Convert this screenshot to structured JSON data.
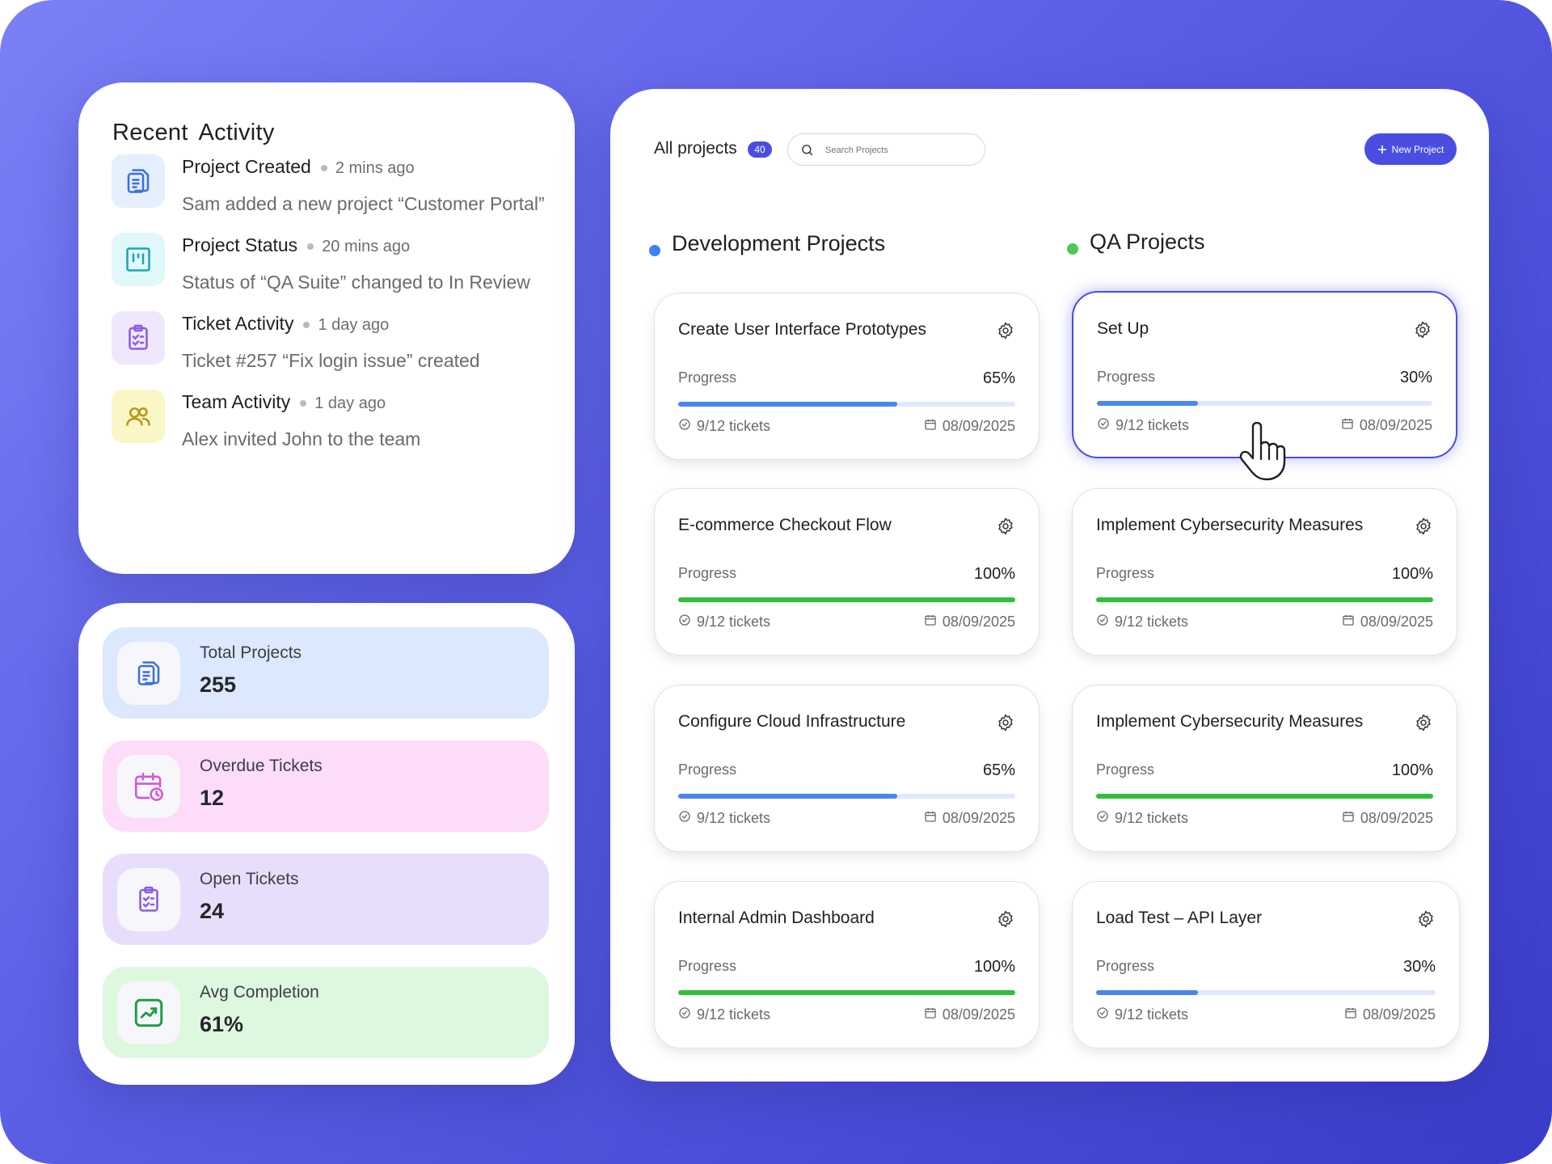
{
  "activity": {
    "title": "Recent  Activity",
    "items": [
      {
        "title": "Project Created",
        "time": "2 mins ago",
        "desc": "Sam added a new project “Customer Portal”",
        "icon": "document-stack-icon",
        "color": "#3b6fe0",
        "bg": "#e6effd"
      },
      {
        "title": "Project Status",
        "time": "20 mins ago",
        "desc": "Status of “QA Suite” changed to In Review",
        "icon": "kanban-board-icon",
        "color": "#1fa4b4",
        "bg": "#e1f8fa"
      },
      {
        "title": "Ticket Activity",
        "time": "1 day ago",
        "desc": "Ticket #257 “Fix login issue” created",
        "icon": "clipboard-check-icon",
        "color": "#8a5be6",
        "bg": "#efe7fc"
      },
      {
        "title": "Team Activity",
        "time": "1 day ago",
        "desc": "Alex invited John to the team",
        "icon": "users-icon",
        "color": "#b29a1c",
        "bg": "#fbf6c5"
      }
    ]
  },
  "stats": [
    {
      "label": "Total Projects",
      "value": "255",
      "icon": "document-stack-icon",
      "bg": "#dbe8fd",
      "color": "#3b6fe0"
    },
    {
      "label": "Overdue Tickets",
      "value": "12",
      "icon": "calendar-clock-icon",
      "bg": "#fcdcf8",
      "color": "#d05ad6"
    },
    {
      "label": "Open Tickets",
      "value": "24",
      "icon": "clipboard-check-icon",
      "bg": "#e8defc",
      "color": "#8a5be6"
    },
    {
      "label": "Avg Completion",
      "value": "61%",
      "icon": "trend-up-icon",
      "bg": "#def8e0",
      "color": "#1f9d45"
    }
  ],
  "projects": {
    "title": "All projects",
    "count": "40",
    "search_placeholder": "Search Projects",
    "new_button": "New Project",
    "progress_label": "Progress",
    "columns": [
      {
        "title": "Development Projects",
        "dot_color": "#3b82f6",
        "cards": [
          {
            "title": "Create User Interface Prototypes",
            "progress": 65,
            "progress_label": "65%",
            "tickets": "9/12 tickets",
            "date": "08/09/2025"
          },
          {
            "title": "E-commerce Checkout Flow",
            "progress": 100,
            "progress_label": "100%",
            "tickets": "9/12 tickets",
            "date": "08/09/2025"
          },
          {
            "title": "Configure Cloud Infrastructure",
            "progress": 65,
            "progress_label": "65%",
            "tickets": "9/12 tickets",
            "date": "08/09/2025"
          },
          {
            "title": "Internal Admin Dashboard",
            "progress": 100,
            "progress_label": "100%",
            "tickets": "9/12 tickets",
            "date": "08/09/2025"
          }
        ]
      },
      {
        "title": "QA Projects",
        "dot_color": "#4cc75a",
        "cards": [
          {
            "title": "Set Up",
            "progress": 30,
            "progress_label": "30%",
            "tickets": "9/12 tickets",
            "date": "08/09/2025",
            "selected": true
          },
          {
            "title": "Implement Cybersecurity Measures",
            "progress": 100,
            "progress_label": "100%",
            "tickets": "9/12 tickets",
            "date": "08/09/2025"
          },
          {
            "title": "Implement Cybersecurity Measures",
            "progress": 100,
            "progress_label": "100%",
            "tickets": "9/12 tickets",
            "date": "08/09/2025"
          },
          {
            "title": "Load Test – API Layer",
            "progress": 30,
            "progress_label": "30%",
            "tickets": "9/12 tickets",
            "date": "08/09/2025"
          }
        ]
      }
    ],
    "colors": {
      "partial": "#4a86ee",
      "complete": "#2fbf3a",
      "accent": "#4a4ee0"
    }
  }
}
